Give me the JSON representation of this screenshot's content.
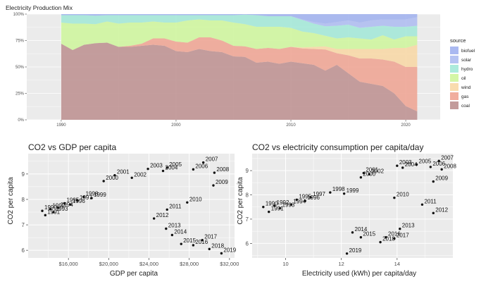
{
  "colors": {
    "panel_bg": "#ebebeb",
    "grid": "#ffffff",
    "point": "#111111",
    "biofuel": "#9badee",
    "solar": "#a9b8f0",
    "hydro": "#9ee7d6",
    "oil": "#ccf597",
    "wind": "#f8d6a0",
    "gas": "#ee9f8c",
    "coal": "#b98a8a"
  },
  "chart_data": [
    {
      "type": "area",
      "stacked": "percent",
      "title": "Electricity Production Mix",
      "xlabel": "",
      "ylabel": "",
      "xlim": [
        1987,
        2023
      ],
      "ylim": [
        0,
        1
      ],
      "x_ticks": [
        "1990",
        "2000",
        "2010",
        "2020"
      ],
      "y_ticks": [
        "0%",
        "25%",
        "50%",
        "75%",
        "100%"
      ],
      "legend_title": "source",
      "legend_position": "right",
      "legend": [
        "biofuel",
        "solar",
        "hydro",
        "oil",
        "wind",
        "gas",
        "coal"
      ],
      "x": [
        1990,
        1991,
        1992,
        1993,
        1994,
        1995,
        1996,
        1997,
        1998,
        1999,
        2000,
        2001,
        2002,
        2003,
        2004,
        2005,
        2006,
        2007,
        2008,
        2009,
        2010,
        2011,
        2012,
        2013,
        2014,
        2015,
        2016,
        2017,
        2018,
        2019,
        2020,
        2021
      ],
      "series": [
        {
          "name": "coal",
          "values": [
            0.72,
            0.66,
            0.71,
            0.725,
            0.73,
            0.69,
            0.69,
            0.7,
            0.71,
            0.7,
            0.65,
            0.64,
            0.67,
            0.65,
            0.64,
            0.6,
            0.595,
            0.54,
            0.55,
            0.53,
            0.55,
            0.535,
            0.52,
            0.465,
            0.52,
            0.44,
            0.36,
            0.34,
            0.32,
            0.25,
            0.13,
            0.08
          ]
        },
        {
          "name": "gas",
          "values": [
            0.0,
            0.0,
            0.0,
            0.0,
            0.0,
            0.0,
            0.01,
            0.02,
            0.06,
            0.07,
            0.09,
            0.09,
            0.11,
            0.13,
            0.11,
            0.1,
            0.1,
            0.13,
            0.13,
            0.14,
            0.14,
            0.14,
            0.15,
            0.2,
            0.11,
            0.17,
            0.22,
            0.24,
            0.25,
            0.3,
            0.37,
            0.42
          ]
        },
        {
          "name": "wind",
          "values": [
            0.0,
            0.0,
            0.0,
            0.0,
            0.0,
            0.0,
            0.0,
            0.0,
            0.0,
            0.0,
            0.0,
            0.0,
            0.0,
            0.0,
            0.0,
            0.0,
            0.0,
            0.0,
            0.0,
            0.0,
            0.0,
            0.01,
            0.02,
            0.03,
            0.04,
            0.06,
            0.09,
            0.09,
            0.1,
            0.13,
            0.18,
            0.21
          ]
        },
        {
          "name": "oil",
          "values": [
            0.2,
            0.25,
            0.2,
            0.18,
            0.2,
            0.22,
            0.22,
            0.2,
            0.16,
            0.15,
            0.18,
            0.21,
            0.17,
            0.16,
            0.19,
            0.22,
            0.21,
            0.21,
            0.2,
            0.21,
            0.18,
            0.15,
            0.13,
            0.1,
            0.1,
            0.11,
            0.1,
            0.09,
            0.13,
            0.08,
            0.11,
            0.08
          ]
        },
        {
          "name": "hydro",
          "values": [
            0.07,
            0.08,
            0.08,
            0.08,
            0.06,
            0.08,
            0.07,
            0.07,
            0.06,
            0.07,
            0.07,
            0.05,
            0.04,
            0.05,
            0.05,
            0.07,
            0.09,
            0.11,
            0.1,
            0.1,
            0.11,
            0.11,
            0.09,
            0.09,
            0.12,
            0.12,
            0.1,
            0.12,
            0.09,
            0.12,
            0.09,
            0.1
          ]
        },
        {
          "name": "solar",
          "values": [
            0.0,
            0.0,
            0.0,
            0.0,
            0.0,
            0.0,
            0.0,
            0.0,
            0.0,
            0.0,
            0.0,
            0.0,
            0.0,
            0.0,
            0.0,
            0.0,
            0.0,
            0.0,
            0.0,
            0.0,
            0.0,
            0.005,
            0.015,
            0.025,
            0.035,
            0.04,
            0.05,
            0.06,
            0.06,
            0.07,
            0.07,
            0.08
          ]
        },
        {
          "name": "biofuel",
          "values": [
            0.01,
            0.01,
            0.01,
            0.015,
            0.01,
            0.01,
            0.01,
            0.01,
            0.01,
            0.01,
            0.01,
            0.01,
            0.01,
            0.01,
            0.01,
            0.01,
            0.005,
            0.01,
            0.02,
            0.02,
            0.02,
            0.05,
            0.075,
            0.09,
            0.075,
            0.06,
            0.08,
            0.06,
            0.05,
            0.05,
            0.05,
            0.03
          ]
        }
      ]
    },
    {
      "type": "scatter",
      "title": "CO2 vs GDP per capita",
      "xlabel": "GDP per capita",
      "ylabel": "CO2 per capita",
      "xlim": [
        12000,
        32500
      ],
      "ylim": [
        5.7,
        9.8
      ],
      "x_ticks": [
        "$16,000",
        "$20,000",
        "$24,000",
        "$28,000",
        "$32,000"
      ],
      "y_ticks": [
        "6",
        "7",
        "8",
        "9"
      ],
      "points": [
        {
          "label": "1990",
          "x": 13400,
          "y": 7.55
        },
        {
          "label": "1991",
          "x": 13700,
          "y": 7.38
        },
        {
          "label": "1992",
          "x": 14200,
          "y": 7.62
        },
        {
          "label": "1993",
          "x": 14500,
          "y": 7.5
        },
        {
          "label": "1994",
          "x": 15000,
          "y": 7.67
        },
        {
          "label": "1995",
          "x": 15600,
          "y": 7.85
        },
        {
          "label": "1996",
          "x": 16200,
          "y": 7.8
        },
        {
          "label": "1997",
          "x": 16900,
          "y": 7.95
        },
        {
          "label": "1998",
          "x": 17500,
          "y": 8.1
        },
        {
          "label": "1999",
          "x": 18300,
          "y": 8.05
        },
        {
          "label": "2000",
          "x": 19500,
          "y": 8.72
        },
        {
          "label": "2001",
          "x": 20600,
          "y": 8.95
        },
        {
          "label": "2002",
          "x": 22300,
          "y": 8.85
        },
        {
          "label": "2003",
          "x": 23900,
          "y": 9.2
        },
        {
          "label": "2004",
          "x": 25400,
          "y": 9.12
        },
        {
          "label": "2005",
          "x": 25800,
          "y": 9.25
        },
        {
          "label": "2006",
          "x": 28400,
          "y": 9.18
        },
        {
          "label": "2007",
          "x": 29400,
          "y": 9.45
        },
        {
          "label": "2008",
          "x": 30500,
          "y": 9.05
        },
        {
          "label": "2009",
          "x": 30400,
          "y": 8.55
        },
        {
          "label": "2010",
          "x": 27800,
          "y": 7.88
        },
        {
          "label": "2011",
          "x": 25800,
          "y": 7.6
        },
        {
          "label": "2012",
          "x": 24500,
          "y": 7.25
        },
        {
          "label": "2013",
          "x": 25700,
          "y": 6.85
        },
        {
          "label": "2014",
          "x": 26300,
          "y": 6.6
        },
        {
          "label": "2015",
          "x": 27200,
          "y": 6.25
        },
        {
          "label": "2016",
          "x": 28400,
          "y": 6.2
        },
        {
          "label": "2017",
          "x": 29300,
          "y": 6.4
        },
        {
          "label": "2018",
          "x": 30000,
          "y": 6.05
        },
        {
          "label": "2019",
          "x": 31200,
          "y": 5.88
        }
      ]
    },
    {
      "type": "scatter",
      "title": "CO2 vs electricity consumption per capita/day",
      "xlabel": "Electricity used (kWh) per capita/day",
      "ylabel": "CO2 per capita",
      "xlim": [
        8.8,
        16.0
      ],
      "ylim": [
        5.4,
        9.7
      ],
      "x_ticks": [
        "10",
        "12",
        "14"
      ],
      "y_ticks": [
        "6",
        "7",
        "8",
        "9"
      ],
      "points": [
        {
          "label": "1990",
          "x": 9.2,
          "y": 7.5
        },
        {
          "label": "1991",
          "x": 9.4,
          "y": 7.3
        },
        {
          "label": "1992",
          "x": 9.6,
          "y": 7.55
        },
        {
          "label": "1993",
          "x": 9.8,
          "y": 7.45
        },
        {
          "label": "1994",
          "x": 10.2,
          "y": 7.6
        },
        {
          "label": "1995",
          "x": 10.4,
          "y": 7.8
        },
        {
          "label": "1996",
          "x": 10.7,
          "y": 7.75
        },
        {
          "label": "1997",
          "x": 10.9,
          "y": 7.9
        },
        {
          "label": "1998",
          "x": 11.6,
          "y": 8.1
        },
        {
          "label": "1999",
          "x": 12.1,
          "y": 8.05
        },
        {
          "label": "2000",
          "x": 12.7,
          "y": 8.72
        },
        {
          "label": "2001",
          "x": 12.8,
          "y": 8.9
        },
        {
          "label": "2002",
          "x": 13.0,
          "y": 8.85
        },
        {
          "label": "2003",
          "x": 14.0,
          "y": 9.2
        },
        {
          "label": "2004",
          "x": 14.2,
          "y": 9.12
        },
        {
          "label": "2005",
          "x": 14.7,
          "y": 9.25
        },
        {
          "label": "2006",
          "x": 15.2,
          "y": 9.15
        },
        {
          "label": "2007",
          "x": 15.5,
          "y": 9.4
        },
        {
          "label": "2008",
          "x": 15.6,
          "y": 9.05
        },
        {
          "label": "2009",
          "x": 15.3,
          "y": 8.55
        },
        {
          "label": "2010",
          "x": 13.9,
          "y": 7.88
        },
        {
          "label": "2011",
          "x": 14.9,
          "y": 7.6
        },
        {
          "label": "2012",
          "x": 15.3,
          "y": 7.25
        },
        {
          "label": "2013",
          "x": 14.1,
          "y": 6.6
        },
        {
          "label": "2014",
          "x": 12.4,
          "y": 6.45
        },
        {
          "label": "2015",
          "x": 12.7,
          "y": 6.25
        },
        {
          "label": "2016",
          "x": 13.6,
          "y": 6.25
        },
        {
          "label": "2017",
          "x": 13.9,
          "y": 6.2
        },
        {
          "label": "2018",
          "x": 13.4,
          "y": 6.05
        },
        {
          "label": "2019",
          "x": 12.2,
          "y": 5.58
        }
      ]
    }
  ]
}
